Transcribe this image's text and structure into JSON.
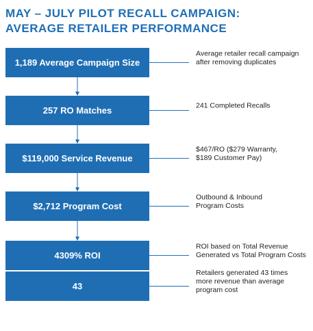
{
  "header": {
    "title": [
      "MAY – JULY PILOT RECALL CAMPAIGN:",
      "AVERAGE RETAILER PERFORMANCE"
    ]
  },
  "steps": [
    {
      "box": "1,189 Average Campaign Size",
      "note": [
        "Average retailer recall campaign",
        "after removing duplicates"
      ]
    },
    {
      "box": "257 RO Matches",
      "note": [
        "241 Completed Recalls"
      ]
    },
    {
      "box": "$119,000 Service Revenue",
      "note": [
        "$467/RO ($279 Warranty,",
        "$189 Customer Pay)"
      ]
    },
    {
      "box": "$2,712 Program Cost",
      "note": [
        "Outbound & Inbound",
        "Program Costs"
      ]
    },
    {
      "box": "4309% ROI",
      "note": [
        "ROI based on Total Revenue",
        "Generated vs Total Program Costs"
      ]
    },
    {
      "box": "43",
      "note": [
        "Retailers generated 43 times",
        "more revenue than average",
        "program cost"
      ]
    }
  ]
}
